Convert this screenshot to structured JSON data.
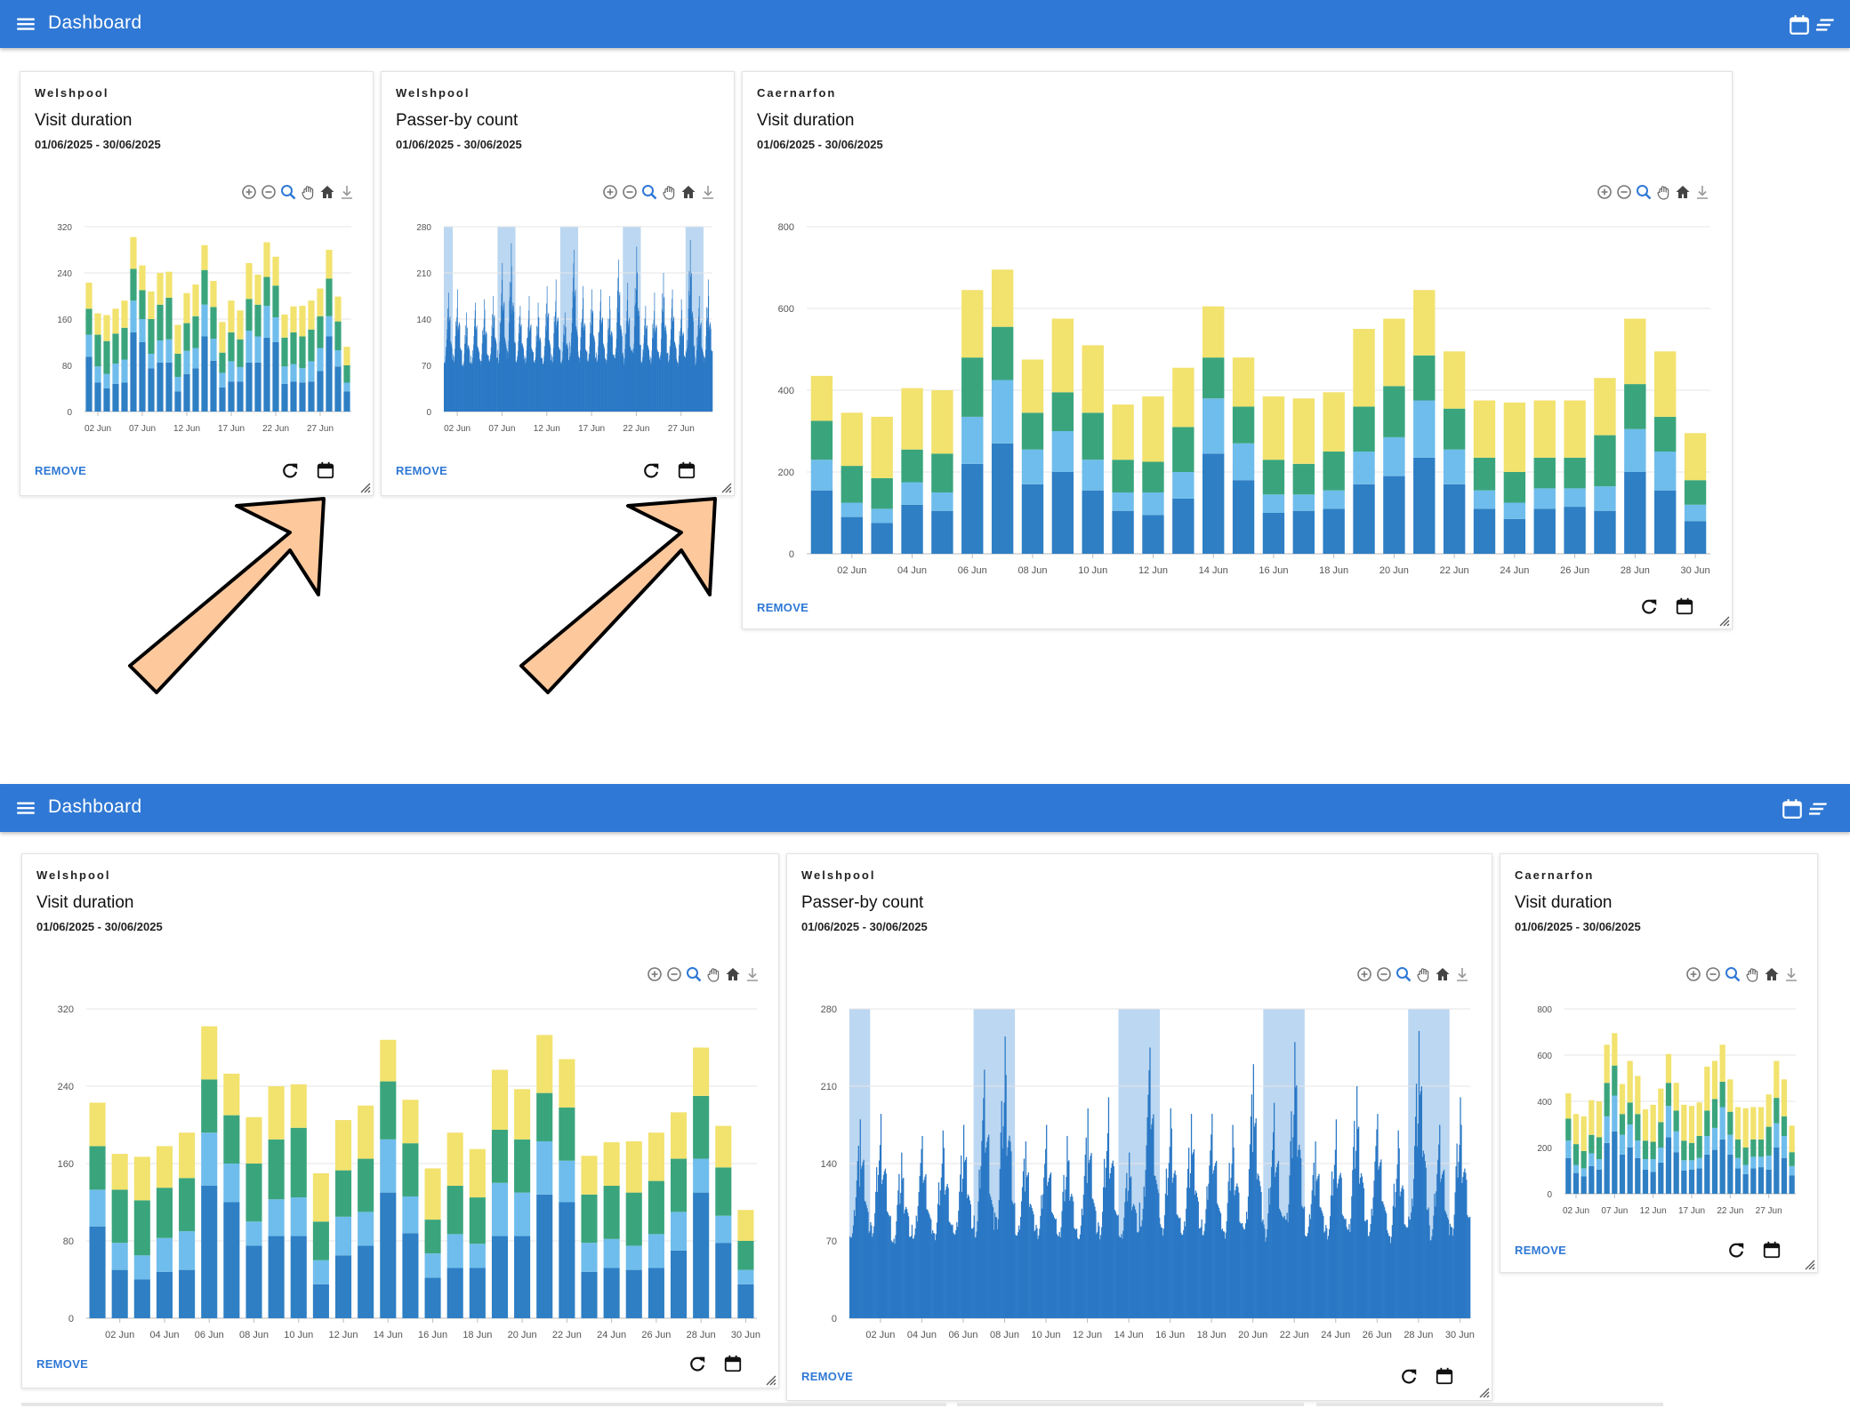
{
  "app": {
    "title": "Dashboard"
  },
  "colors": {
    "appbar": "#2f78d5",
    "seg1": "#2e7fc4",
    "seg2": "#6fbdec",
    "seg3": "#3aa57d",
    "seg4": "#f2e26e",
    "passer": "#2a78c5",
    "weekend": "#bcd7f1",
    "remove": "#2f78d5",
    "arrow": "#fcc89c"
  },
  "icons": {
    "menu": "hamburger-menu-icon",
    "appbar_right": [
      "calendar-icon",
      "notes-icon"
    ],
    "toolbar": [
      "zoom-in-icon",
      "zoom-out-icon",
      "zoom-select-icon",
      "pan-hand-icon",
      "home-reset-icon",
      "download-icon"
    ],
    "footer": [
      "refresh-icon",
      "calendar-icon"
    ]
  },
  "cards": {
    "labels": {
      "welshpool_visit": {
        "location": "Welshpool",
        "title": "Visit duration",
        "range": "01/06/2025 - 30/06/2025",
        "remove": "REMOVE"
      },
      "welshpool_passer": {
        "location": "Welshpool",
        "title": "Passer-by count",
        "range": "01/06/2025 - 30/06/2025",
        "remove": "REMOVE"
      },
      "caernarfon_visit": {
        "location": "Caernarfon",
        "title": "Visit duration",
        "range": "01/06/2025 - 30/06/2025",
        "remove": "REMOVE"
      }
    }
  },
  "chart_data": [
    {
      "type": "bar",
      "stacked": true,
      "location": "Welshpool",
      "title": "Visit duration",
      "categories": [
        "01 Jun",
        "02 Jun",
        "03 Jun",
        "04 Jun",
        "05 Jun",
        "06 Jun",
        "07 Jun",
        "08 Jun",
        "09 Jun",
        "10 Jun",
        "11 Jun",
        "12 Jun",
        "13 Jun",
        "14 Jun",
        "15 Jun",
        "16 Jun",
        "17 Jun",
        "18 Jun",
        "19 Jun",
        "20 Jun",
        "21 Jun",
        "22 Jun",
        "23 Jun",
        "24 Jun",
        "25 Jun",
        "26 Jun",
        "27 Jun",
        "28 Jun",
        "29 Jun",
        "30 Jun"
      ],
      "x_tick_labels_narrow": [
        "02 Jun",
        "07 Jun",
        "12 Jun",
        "17 Jun",
        "22 Jun",
        "27 Jun"
      ],
      "x_tick_labels_wide": [
        "02 Jun",
        "04 Jun",
        "06 Jun",
        "08 Jun",
        "10 Jun",
        "12 Jun",
        "14 Jun",
        "16 Jun",
        "18 Jun",
        "20 Jun",
        "22 Jun",
        "24 Jun",
        "26 Jun",
        "28 Jun",
        "30 Jun"
      ],
      "series": [
        {
          "values": [
            95,
            50,
            40,
            48,
            50,
            137,
            120,
            75,
            85,
            85,
            35,
            65,
            75,
            130,
            88,
            42,
            52,
            52,
            85,
            85,
            128,
            120,
            48,
            52,
            50,
            52,
            70,
            130,
            78,
            35
          ]
        },
        {
          "values": [
            38,
            28,
            25,
            35,
            40,
            55,
            40,
            25,
            38,
            40,
            25,
            40,
            35,
            55,
            38,
            25,
            35,
            25,
            55,
            45,
            55,
            43,
            30,
            30,
            25,
            35,
            40,
            35,
            28,
            15
          ]
        },
        {
          "values": [
            45,
            55,
            57,
            52,
            55,
            55,
            50,
            60,
            62,
            72,
            40,
            48,
            55,
            60,
            55,
            35,
            50,
            48,
            55,
            55,
            50,
            55,
            50,
            55,
            55,
            55,
            55,
            65,
            50,
            30
          ]
        },
        {
          "values": [
            45,
            37,
            45,
            43,
            47,
            55,
            43,
            48,
            55,
            45,
            50,
            52,
            55,
            43,
            45,
            53,
            55,
            50,
            62,
            52,
            60,
            50,
            40,
            45,
            53,
            50,
            48,
            50,
            43,
            32
          ]
        }
      ],
      "y_ticks": [
        0,
        80,
        160,
        240,
        320
      ],
      "ylim": [
        0,
        320
      ]
    },
    {
      "type": "bar",
      "location": "Welshpool",
      "title": "Passer-by count",
      "y_ticks": [
        0,
        70,
        140,
        210,
        280
      ],
      "ylim": [
        0,
        280
      ],
      "x_tick_labels_narrow": [
        "02 Jun",
        "07 Jun",
        "12 Jun",
        "17 Jun",
        "22 Jun",
        "27 Jun"
      ],
      "x_tick_labels_wide": [
        "02 Jun",
        "04 Jun",
        "06 Jun",
        "08 Jun",
        "10 Jun",
        "12 Jun",
        "14 Jun",
        "16 Jun",
        "18 Jun",
        "20 Jun",
        "22 Jun",
        "24 Jun",
        "26 Jun",
        "28 Jun",
        "30 Jun"
      ],
      "daily_peak": [
        180,
        185,
        150,
        165,
        170,
        175,
        225,
        255,
        160,
        175,
        165,
        190,
        200,
        150,
        245,
        190,
        185,
        185,
        175,
        230,
        195,
        250,
        160,
        180,
        210,
        185,
        170,
        260,
        175,
        200
      ],
      "daily_base": [
        58,
        62,
        55,
        60,
        58,
        60,
        55,
        60,
        62,
        60,
        58,
        55,
        58,
        60,
        62,
        60,
        58,
        62,
        60,
        58,
        55,
        60,
        62,
        60,
        58,
        60,
        55,
        62,
        58,
        60
      ],
      "weekend_ranges": [
        [
          "01 Jun",
          "01 Jun"
        ],
        [
          "07 Jun",
          "08 Jun"
        ],
        [
          "14 Jun",
          "15 Jun"
        ],
        [
          "21 Jun",
          "22 Jun"
        ],
        [
          "28 Jun",
          "29 Jun"
        ]
      ]
    },
    {
      "type": "bar",
      "stacked": true,
      "location": "Caernarfon",
      "title": "Visit duration",
      "categories": [
        "01 Jun",
        "02 Jun",
        "03 Jun",
        "04 Jun",
        "05 Jun",
        "06 Jun",
        "07 Jun",
        "08 Jun",
        "09 Jun",
        "10 Jun",
        "11 Jun",
        "12 Jun",
        "13 Jun",
        "14 Jun",
        "15 Jun",
        "16 Jun",
        "17 Jun",
        "18 Jun",
        "19 Jun",
        "20 Jun",
        "21 Jun",
        "22 Jun",
        "23 Jun",
        "24 Jun",
        "25 Jun",
        "26 Jun",
        "27 Jun",
        "28 Jun",
        "29 Jun",
        "30 Jun"
      ],
      "x_tick_labels_narrow": [
        "02 Jun",
        "07 Jun",
        "12 Jun",
        "17 Jun",
        "22 Jun",
        "27 Jun"
      ],
      "x_tick_labels_wide": [
        "02 Jun",
        "04 Jun",
        "06 Jun",
        "08 Jun",
        "10 Jun",
        "12 Jun",
        "14 Jun",
        "16 Jun",
        "18 Jun",
        "20 Jun",
        "22 Jun",
        "24 Jun",
        "26 Jun",
        "28 Jun",
        "30 Jun"
      ],
      "series": [
        {
          "values": [
            155,
            90,
            75,
            120,
            105,
            220,
            270,
            170,
            200,
            155,
            105,
            95,
            135,
            245,
            180,
            100,
            105,
            110,
            170,
            190,
            235,
            170,
            110,
            85,
            110,
            115,
            105,
            200,
            155,
            80
          ]
        },
        {
          "values": [
            75,
            35,
            35,
            55,
            45,
            115,
            155,
            85,
            100,
            75,
            45,
            55,
            65,
            135,
            90,
            45,
            40,
            45,
            80,
            95,
            140,
            85,
            45,
            40,
            50,
            45,
            60,
            105,
            95,
            40
          ]
        },
        {
          "values": [
            95,
            90,
            75,
            80,
            95,
            145,
            130,
            90,
            95,
            115,
            80,
            75,
            110,
            100,
            90,
            85,
            75,
            95,
            110,
            125,
            110,
            100,
            80,
            75,
            75,
            75,
            125,
            110,
            85,
            60
          ]
        },
        {
          "values": [
            110,
            130,
            150,
            150,
            155,
            165,
            140,
            130,
            180,
            165,
            135,
            160,
            145,
            125,
            120,
            155,
            160,
            145,
            190,
            165,
            160,
            140,
            140,
            170,
            140,
            140,
            140,
            160,
            160,
            115
          ]
        }
      ],
      "y_ticks": [
        0,
        200,
        400,
        600,
        800
      ],
      "ylim": [
        0,
        800
      ]
    }
  ]
}
